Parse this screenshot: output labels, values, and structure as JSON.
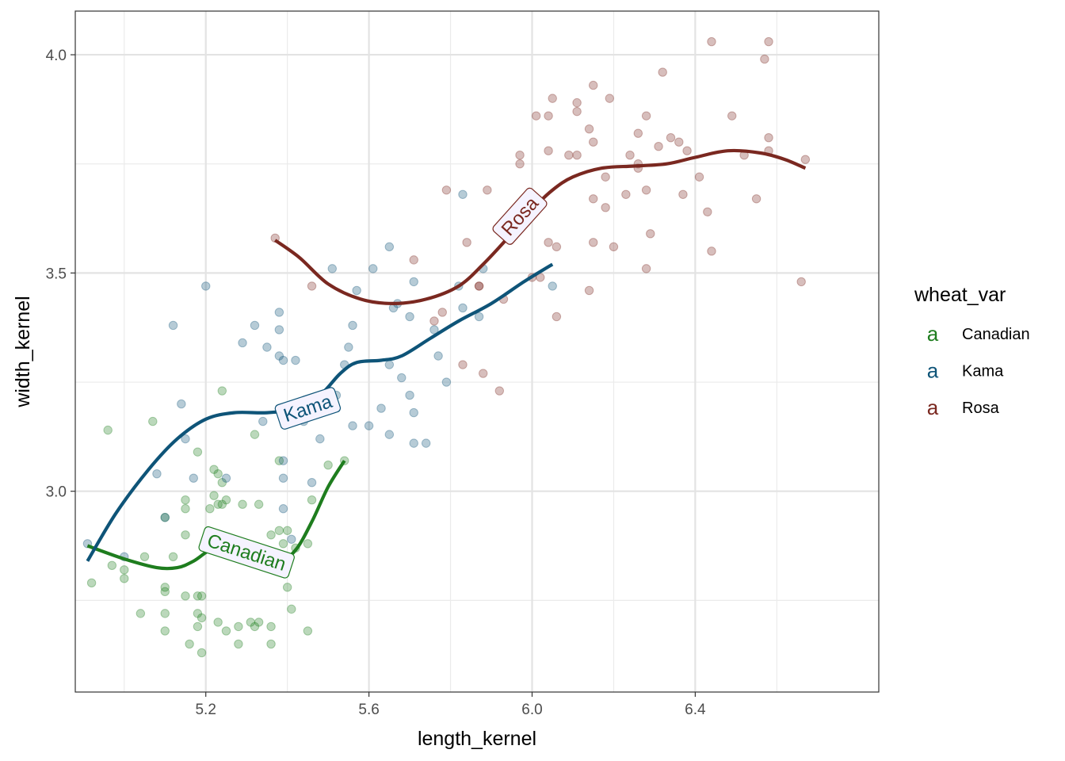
{
  "chart_data": {
    "type": "scatter",
    "xlabel": "length_kernel",
    "ylabel": "width_kernel",
    "xlim": [
      4.88,
      6.85
    ],
    "ylim": [
      2.54,
      4.1
    ],
    "x_ticks": [
      5.2,
      5.6,
      6.0,
      6.4
    ],
    "x_tick_labels": [
      "5.2",
      "5.6",
      "6.0",
      "6.4"
    ],
    "y_ticks": [
      3.0,
      3.5,
      4.0
    ],
    "y_tick_labels": [
      "3.0",
      "3.5",
      "4.0"
    ],
    "grid": true,
    "legend": {
      "title": "wheat_var",
      "position": "right",
      "key_glyph": "a",
      "entries": [
        "Canadian",
        "Kama",
        "Rosa"
      ]
    },
    "series": [
      {
        "name": "Canadian",
        "color": "#1e7d1e",
        "points": [
          [
            4.92,
            2.79
          ],
          [
            4.96,
            3.14
          ],
          [
            4.97,
            2.83
          ],
          [
            5.0,
            2.82
          ],
          [
            5.0,
            2.8
          ],
          [
            5.04,
            2.72
          ],
          [
            5.05,
            2.85
          ],
          [
            5.07,
            3.16
          ],
          [
            5.1,
            2.78
          ],
          [
            5.1,
            2.77
          ],
          [
            5.1,
            2.72
          ],
          [
            5.1,
            2.68
          ],
          [
            5.1,
            2.94
          ],
          [
            5.12,
            2.85
          ],
          [
            5.15,
            2.96
          ],
          [
            5.15,
            2.98
          ],
          [
            5.15,
            2.76
          ],
          [
            5.15,
            2.9
          ],
          [
            5.16,
            2.65
          ],
          [
            5.18,
            2.69
          ],
          [
            5.18,
            2.72
          ],
          [
            5.18,
            2.76
          ],
          [
            5.18,
            3.09
          ],
          [
            5.19,
            2.63
          ],
          [
            5.19,
            2.71
          ],
          [
            5.19,
            2.76
          ],
          [
            5.21,
            2.96
          ],
          [
            5.22,
            2.99
          ],
          [
            5.22,
            3.05
          ],
          [
            5.23,
            3.04
          ],
          [
            5.23,
            2.97
          ],
          [
            5.24,
            3.02
          ],
          [
            5.24,
            3.23
          ],
          [
            5.24,
            2.97
          ],
          [
            5.25,
            2.98
          ],
          [
            5.23,
            2.7
          ],
          [
            5.25,
            2.68
          ],
          [
            5.28,
            2.65
          ],
          [
            5.28,
            2.69
          ],
          [
            5.29,
            2.97
          ],
          [
            5.31,
            2.7
          ],
          [
            5.32,
            2.69
          ],
          [
            5.32,
            3.13
          ],
          [
            5.33,
            2.7
          ],
          [
            5.33,
            2.97
          ],
          [
            5.36,
            2.9
          ],
          [
            5.36,
            2.65
          ],
          [
            5.36,
            2.69
          ],
          [
            5.38,
            3.07
          ],
          [
            5.38,
            2.91
          ],
          [
            5.39,
            2.88
          ],
          [
            5.4,
            2.91
          ],
          [
            5.4,
            2.78
          ],
          [
            5.41,
            2.73
          ],
          [
            5.42,
            2.87
          ],
          [
            5.45,
            2.68
          ],
          [
            5.45,
            2.88
          ],
          [
            5.46,
            2.98
          ],
          [
            5.5,
            3.06
          ],
          [
            5.54,
            3.07
          ]
        ],
        "smooth": [
          [
            4.91,
            2.875
          ],
          [
            5.0,
            2.845
          ],
          [
            5.08,
            2.825
          ],
          [
            5.13,
            2.825
          ],
          [
            5.17,
            2.84
          ],
          [
            5.22,
            2.87
          ],
          [
            5.28,
            2.875
          ],
          [
            5.33,
            2.855
          ],
          [
            5.38,
            2.84
          ],
          [
            5.42,
            2.865
          ],
          [
            5.46,
            2.93
          ],
          [
            5.5,
            3.01
          ],
          [
            5.54,
            3.07
          ]
        ],
        "label": "Canadian"
      },
      {
        "name": "Kama",
        "color": "#0e5478",
        "points": [
          [
            4.91,
            2.88
          ],
          [
            5.0,
            2.85
          ],
          [
            5.08,
            3.04
          ],
          [
            5.1,
            2.94
          ],
          [
            5.12,
            3.38
          ],
          [
            5.14,
            3.2
          ],
          [
            5.15,
            3.12
          ],
          [
            5.17,
            3.03
          ],
          [
            5.2,
            3.47
          ],
          [
            5.25,
            3.03
          ],
          [
            5.29,
            3.34
          ],
          [
            5.32,
            3.38
          ],
          [
            5.34,
            3.16
          ],
          [
            5.35,
            3.33
          ],
          [
            5.38,
            3.41
          ],
          [
            5.38,
            3.37
          ],
          [
            5.38,
            3.31
          ],
          [
            5.39,
            3.3
          ],
          [
            5.39,
            3.07
          ],
          [
            5.39,
            3.03
          ],
          [
            5.39,
            2.96
          ],
          [
            5.41,
            2.89
          ],
          [
            5.42,
            3.3
          ],
          [
            5.44,
            3.16
          ],
          [
            5.46,
            3.02
          ],
          [
            5.47,
            3.19
          ],
          [
            5.48,
            3.12
          ],
          [
            5.51,
            3.51
          ],
          [
            5.52,
            3.22
          ],
          [
            5.54,
            3.29
          ],
          [
            5.55,
            3.33
          ],
          [
            5.56,
            3.38
          ],
          [
            5.56,
            3.15
          ],
          [
            5.57,
            3.46
          ],
          [
            5.6,
            3.15
          ],
          [
            5.61,
            3.51
          ],
          [
            5.63,
            3.19
          ],
          [
            5.65,
            3.56
          ],
          [
            5.65,
            3.29
          ],
          [
            5.65,
            3.13
          ],
          [
            5.66,
            3.42
          ],
          [
            5.67,
            3.43
          ],
          [
            5.68,
            3.26
          ],
          [
            5.7,
            3.4
          ],
          [
            5.7,
            3.22
          ],
          [
            5.71,
            3.48
          ],
          [
            5.71,
            3.18
          ],
          [
            5.71,
            3.11
          ],
          [
            5.74,
            3.11
          ],
          [
            5.76,
            3.37
          ],
          [
            5.77,
            3.31
          ],
          [
            5.79,
            3.25
          ],
          [
            5.82,
            3.47
          ],
          [
            5.83,
            3.42
          ],
          [
            5.83,
            3.68
          ],
          [
            5.87,
            3.4
          ],
          [
            5.88,
            3.51
          ],
          [
            6.05,
            3.47
          ]
        ],
        "smooth": [
          [
            4.91,
            2.84
          ],
          [
            4.98,
            2.95
          ],
          [
            5.06,
            3.05
          ],
          [
            5.13,
            3.12
          ],
          [
            5.2,
            3.165
          ],
          [
            5.27,
            3.18
          ],
          [
            5.35,
            3.18
          ],
          [
            5.42,
            3.19
          ],
          [
            5.48,
            3.22
          ],
          [
            5.53,
            3.27
          ],
          [
            5.57,
            3.295
          ],
          [
            5.63,
            3.3
          ],
          [
            5.68,
            3.31
          ],
          [
            5.75,
            3.35
          ],
          [
            5.82,
            3.39
          ],
          [
            5.9,
            3.43
          ],
          [
            5.98,
            3.48
          ],
          [
            6.05,
            3.52
          ]
        ],
        "label": "Kama"
      },
      {
        "name": "Rosa",
        "color": "#7a2820",
        "points": [
          [
            5.37,
            3.58
          ],
          [
            5.46,
            3.47
          ],
          [
            5.71,
            3.53
          ],
          [
            5.76,
            3.39
          ],
          [
            5.78,
            3.41
          ],
          [
            5.79,
            3.69
          ],
          [
            5.83,
            3.29
          ],
          [
            5.84,
            3.57
          ],
          [
            5.87,
            3.47
          ],
          [
            5.87,
            3.47
          ],
          [
            5.88,
            3.27
          ],
          [
            5.89,
            3.69
          ],
          [
            5.92,
            3.23
          ],
          [
            5.93,
            3.44
          ],
          [
            5.97,
            3.77
          ],
          [
            5.97,
            3.75
          ],
          [
            6.0,
            3.49
          ],
          [
            6.01,
            3.86
          ],
          [
            6.02,
            3.49
          ],
          [
            6.04,
            3.86
          ],
          [
            6.04,
            3.78
          ],
          [
            6.04,
            3.57
          ],
          [
            6.05,
            3.9
          ],
          [
            6.06,
            3.56
          ],
          [
            6.06,
            3.4
          ],
          [
            6.09,
            3.77
          ],
          [
            6.11,
            3.89
          ],
          [
            6.11,
            3.87
          ],
          [
            6.11,
            3.77
          ],
          [
            6.14,
            3.46
          ],
          [
            6.14,
            3.83
          ],
          [
            6.15,
            3.8
          ],
          [
            6.15,
            3.57
          ],
          [
            6.15,
            3.67
          ],
          [
            6.15,
            3.93
          ],
          [
            6.18,
            3.65
          ],
          [
            6.18,
            3.72
          ],
          [
            6.19,
            3.9
          ],
          [
            6.2,
            3.56
          ],
          [
            6.23,
            3.68
          ],
          [
            6.24,
            3.77
          ],
          [
            6.26,
            3.74
          ],
          [
            6.26,
            3.82
          ],
          [
            6.26,
            3.75
          ],
          [
            6.28,
            3.86
          ],
          [
            6.28,
            3.69
          ],
          [
            6.28,
            3.51
          ],
          [
            6.29,
            3.59
          ],
          [
            6.31,
            3.79
          ],
          [
            6.32,
            3.96
          ],
          [
            6.34,
            3.81
          ],
          [
            6.36,
            3.8
          ],
          [
            6.37,
            3.68
          ],
          [
            6.38,
            3.78
          ],
          [
            6.41,
            3.72
          ],
          [
            6.43,
            3.64
          ],
          [
            6.44,
            3.55
          ],
          [
            6.44,
            4.03
          ],
          [
            6.49,
            3.86
          ],
          [
            6.52,
            3.77
          ],
          [
            6.55,
            3.67
          ],
          [
            6.57,
            3.99
          ],
          [
            6.58,
            4.03
          ],
          [
            6.58,
            3.81
          ],
          [
            6.58,
            3.78
          ],
          [
            6.66,
            3.48
          ],
          [
            6.67,
            3.76
          ]
        ],
        "smooth": [
          [
            5.37,
            3.575
          ],
          [
            5.43,
            3.535
          ],
          [
            5.5,
            3.475
          ],
          [
            5.58,
            3.44
          ],
          [
            5.66,
            3.43
          ],
          [
            5.74,
            3.44
          ],
          [
            5.82,
            3.47
          ],
          [
            5.88,
            3.52
          ],
          [
            5.94,
            3.58
          ],
          [
            6.0,
            3.645
          ],
          [
            6.05,
            3.69
          ],
          [
            6.1,
            3.72
          ],
          [
            6.17,
            3.74
          ],
          [
            6.25,
            3.745
          ],
          [
            6.33,
            3.75
          ],
          [
            6.4,
            3.765
          ],
          [
            6.48,
            3.78
          ],
          [
            6.56,
            3.775
          ],
          [
            6.62,
            3.76
          ],
          [
            6.67,
            3.74
          ]
        ],
        "label": "Rosa"
      }
    ]
  }
}
